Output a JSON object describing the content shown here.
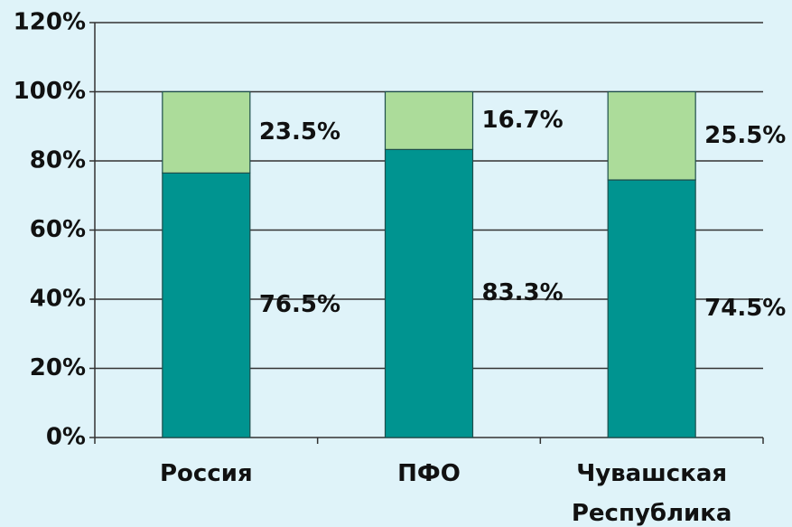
{
  "chart_data": {
    "type": "stacked_bar",
    "categories": [
      "Россия",
      "ПФО",
      "Чувашская Республика"
    ],
    "series": [
      {
        "color": "#009490",
        "values": [
          76.5,
          83.3,
          74.5
        ],
        "value_labels": [
          "76.5%",
          "83.3%",
          "74.5%"
        ]
      },
      {
        "color": "#acdc9a",
        "values": [
          23.5,
          16.7,
          25.5
        ],
        "value_labels": [
          "23.5%",
          "16.7%",
          "25.5%"
        ]
      }
    ],
    "ylim": [
      0,
      120
    ],
    "yticks": [
      {
        "value": 0,
        "label": "0%"
      },
      {
        "value": 20,
        "label": "20%"
      },
      {
        "value": 40,
        "label": "40%"
      },
      {
        "value": 60,
        "label": "60%"
      },
      {
        "value": 80,
        "label": "80%"
      },
      {
        "value": 100,
        "label": "100%"
      },
      {
        "value": 120,
        "label": "120%"
      }
    ],
    "grid": true
  }
}
